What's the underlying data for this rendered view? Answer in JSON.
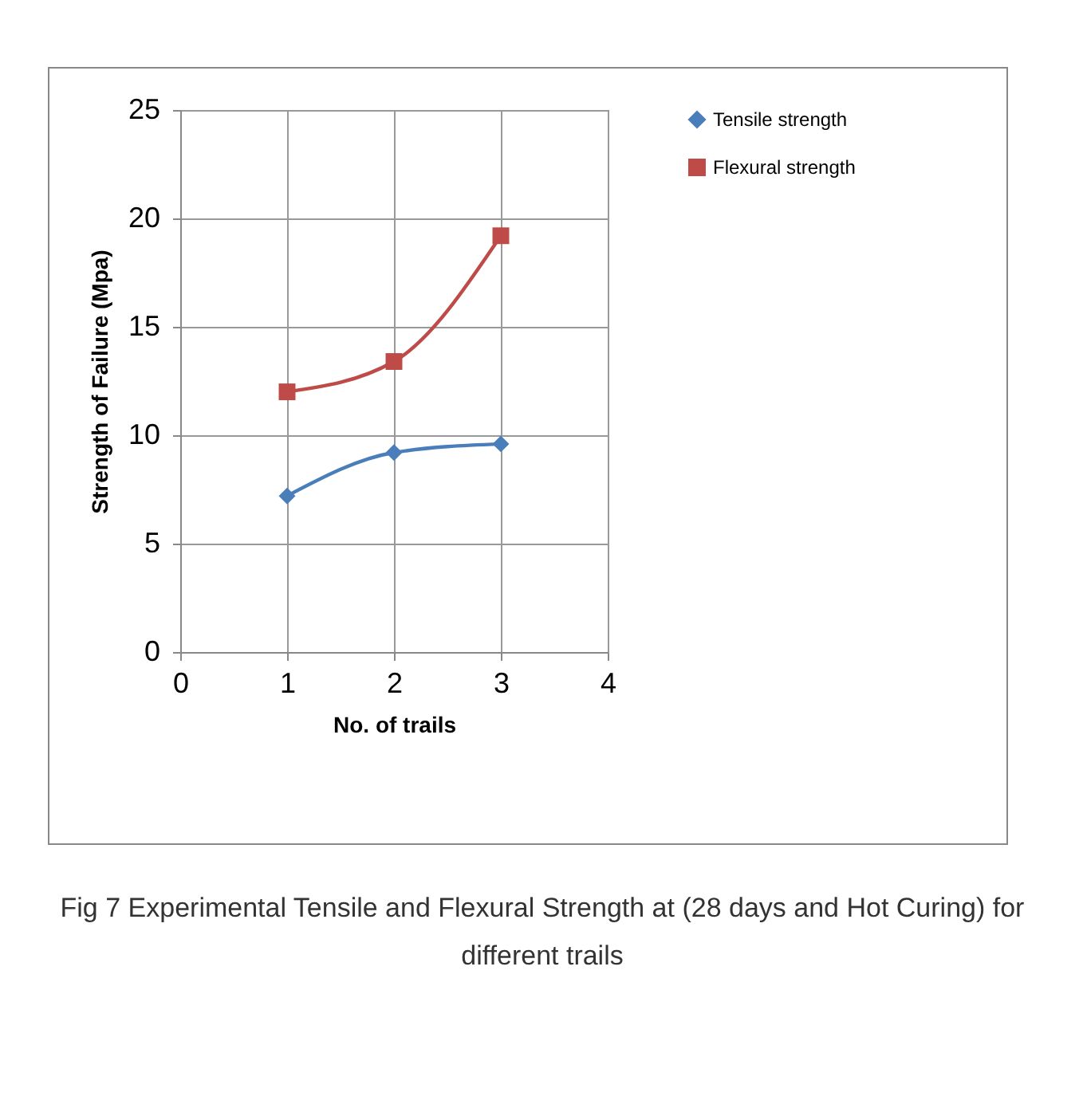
{
  "chart_data": {
    "type": "line",
    "xlabel": "No. of trails",
    "ylabel": "Strength of Failure (Mpa)",
    "x": [
      1,
      2,
      3
    ],
    "series": [
      {
        "name": "Tensile strength",
        "color": "#4a7ebb",
        "marker": "diamond",
        "values": [
          7.2,
          9.2,
          9.6
        ]
      },
      {
        "name": "Flexural strength",
        "color": "#be4b48",
        "marker": "square",
        "values": [
          12.0,
          13.4,
          19.2
        ]
      }
    ],
    "xlim": [
      0,
      4
    ],
    "xticks": [
      0,
      1,
      2,
      3,
      4
    ],
    "ylim": [
      0,
      25
    ],
    "yticks": [
      0,
      5,
      10,
      15,
      20,
      25
    ],
    "grid": true,
    "legend": "right",
    "line_style": "solid",
    "annotations": [
      "Fig 7 Experimental Tensile and Flexural Strength at (28 days and Hot Curing) for different trails"
    ]
  }
}
